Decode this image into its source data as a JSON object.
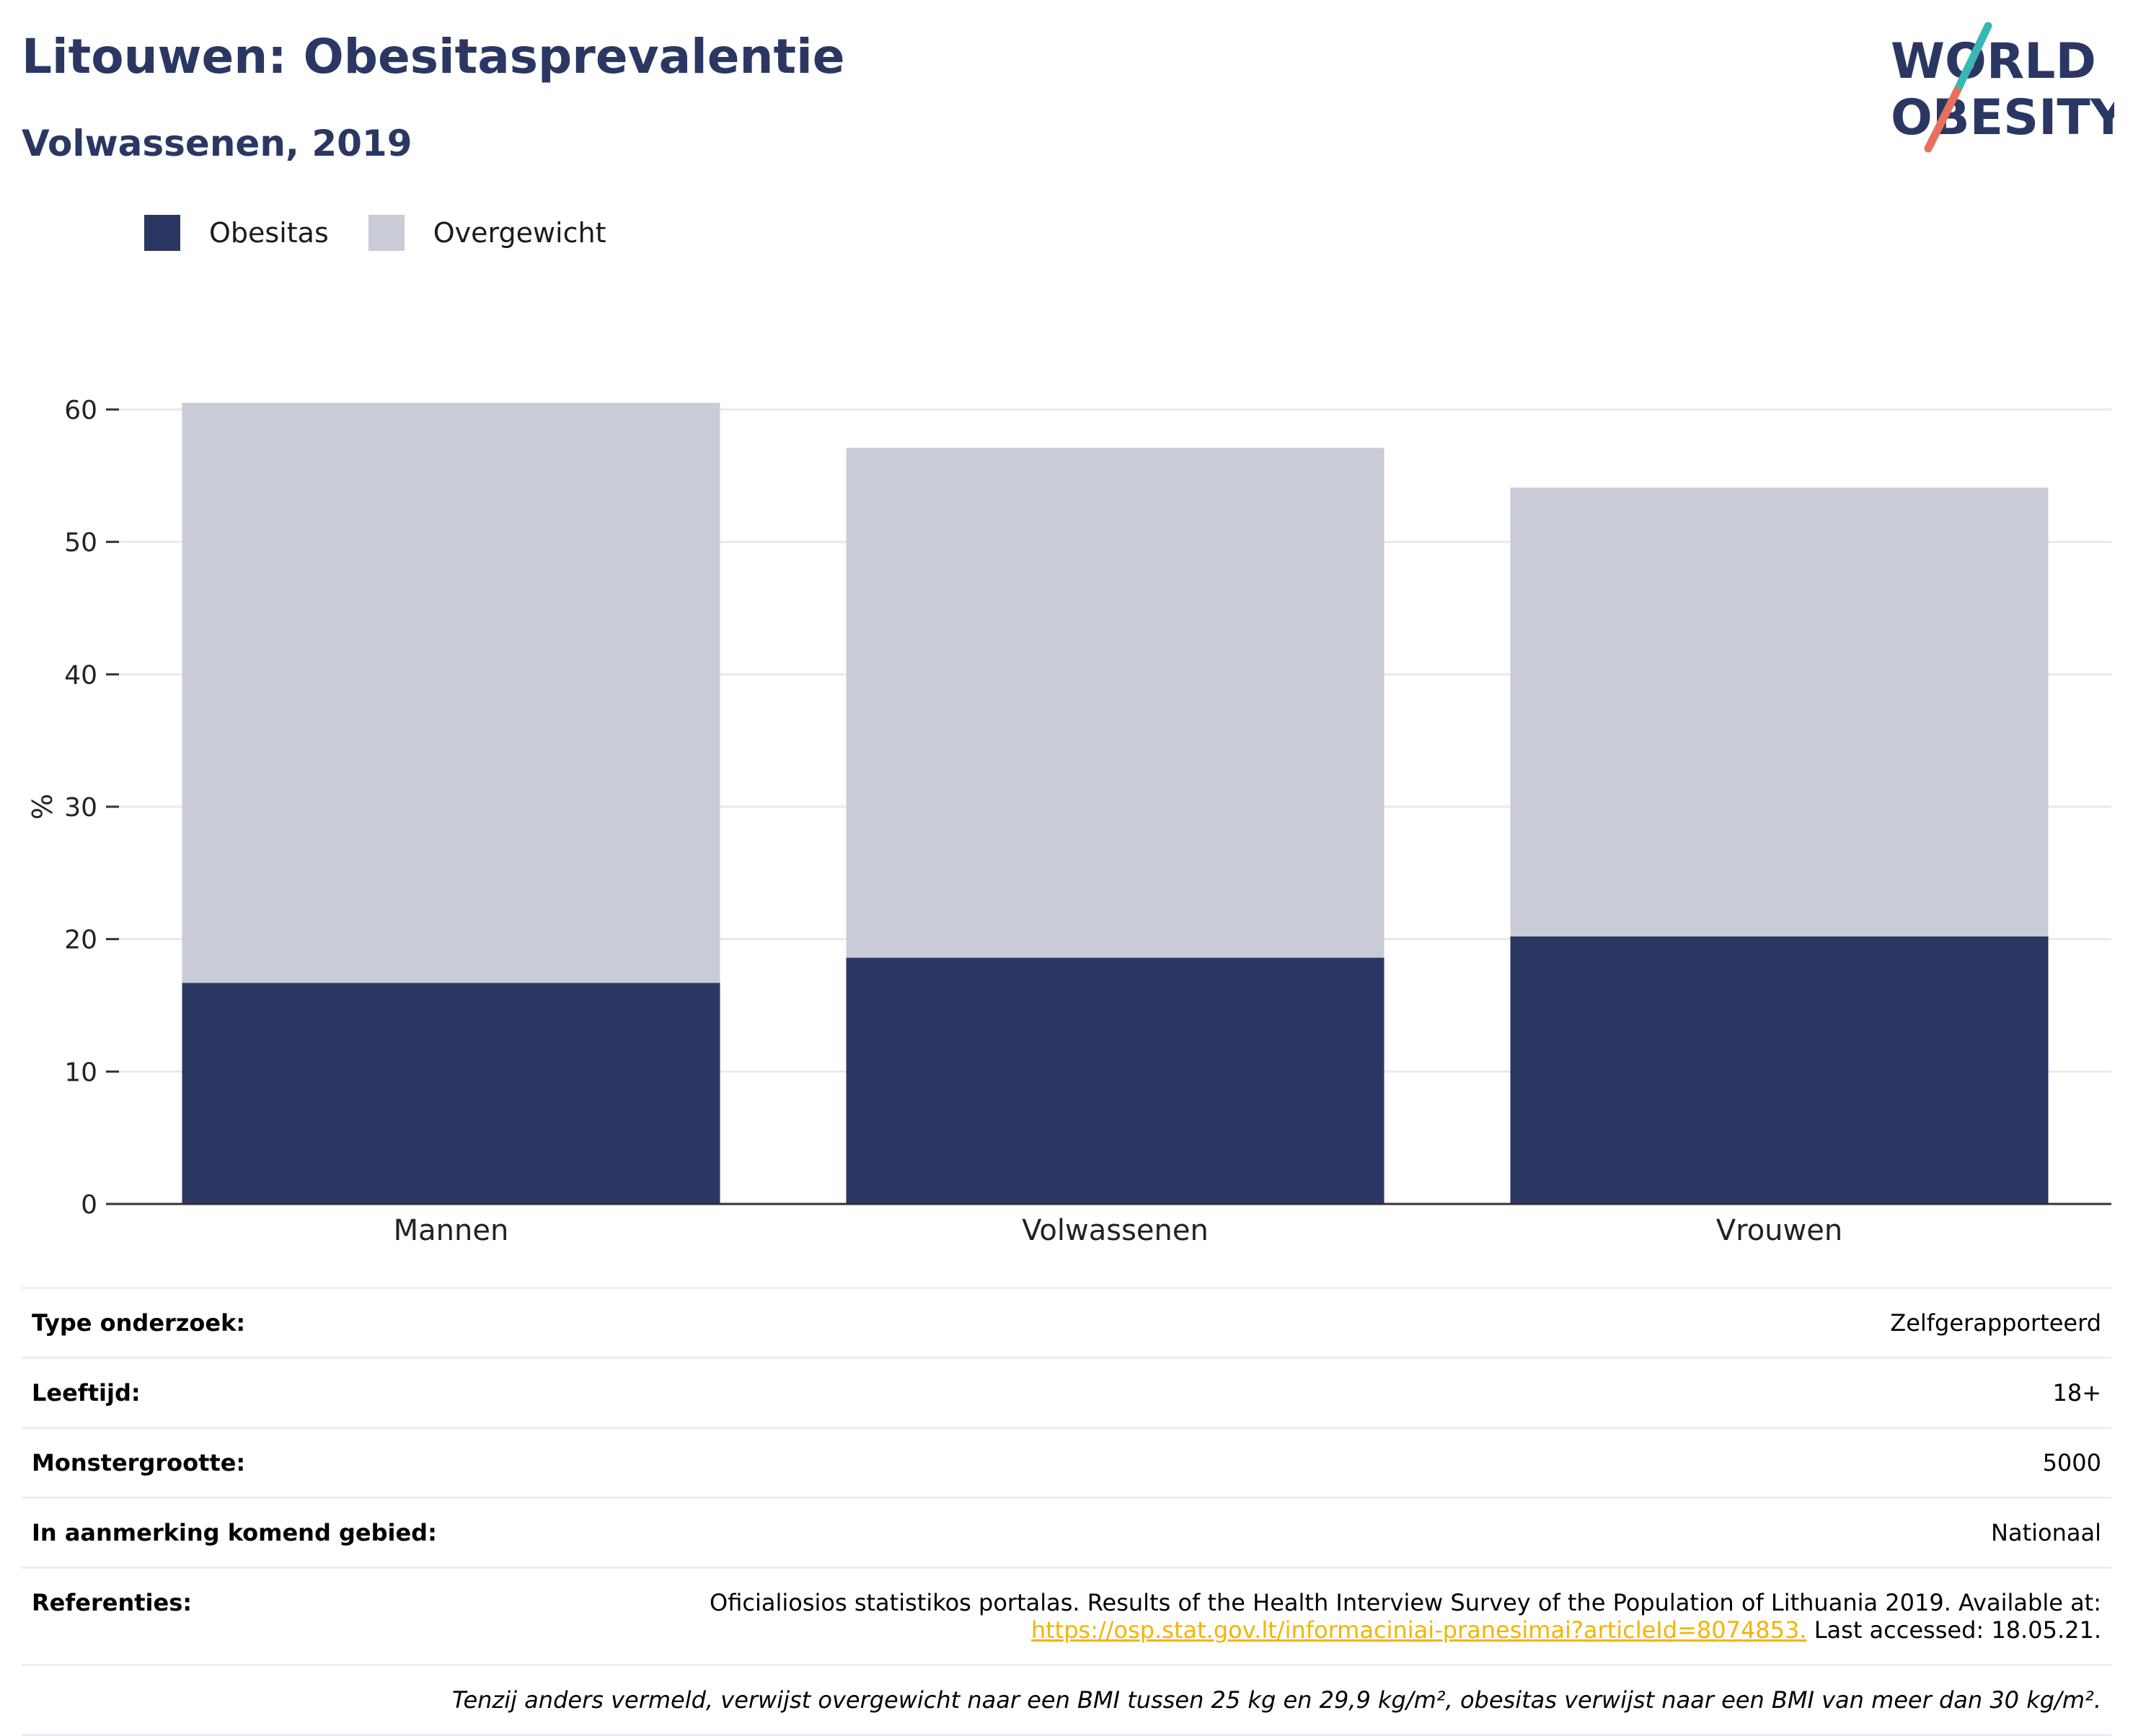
{
  "title": "Litouwen: Obesitasprevalentie",
  "subtitle": "Volwassenen, 2019",
  "logo": {
    "line1": "WORLD",
    "line2": "OBESITY"
  },
  "colors": {
    "obesitas": "#2b3763",
    "overgewicht": "#c9cbd6",
    "title": "#2b3763",
    "link": "#f4b400"
  },
  "chart_data": {
    "type": "bar",
    "stacked": true,
    "categories": [
      "Mannen",
      "Volwassenen",
      "Vrouwen"
    ],
    "series": [
      {
        "name": "Obesitas",
        "values": [
          16.7,
          18.6,
          20.2
        ]
      },
      {
        "name": "Overgewicht",
        "values": [
          43.8,
          38.5,
          33.9
        ]
      }
    ],
    "ylabel": "%",
    "ylim": [
      0,
      60
    ],
    "yticks": [
      "0",
      "10",
      "20",
      "30",
      "40",
      "50",
      "60"
    ],
    "grid": true,
    "legend": "top-left"
  },
  "info": {
    "rows": [
      {
        "key": "Type onderzoek:",
        "value": "Zelfgerapporteerd"
      },
      {
        "key": "Leeftijd:",
        "value": "18+"
      },
      {
        "key": "Monstergrootte:",
        "value": "5000"
      },
      {
        "key": "In aanmerking komend gebied:",
        "value": "Nationaal"
      }
    ],
    "ref_key": "Referenties:",
    "ref_line1": "Oficialiosios statistikos portalas. Results of the Health Interview Survey of the Population of Lithuania 2019. Available at:",
    "ref_link": "https://osp.stat.gov.lt/informaciniai-pranesimai?articleId=8074853.",
    "ref_tail": " Last accessed: 18.05.21.",
    "note": "Tenzij anders vermeld, verwijst overgewicht naar een BMI tussen 25 kg en 29,9 kg/m², obesitas verwijst naar een BMI van meer dan 30 kg/m²."
  }
}
